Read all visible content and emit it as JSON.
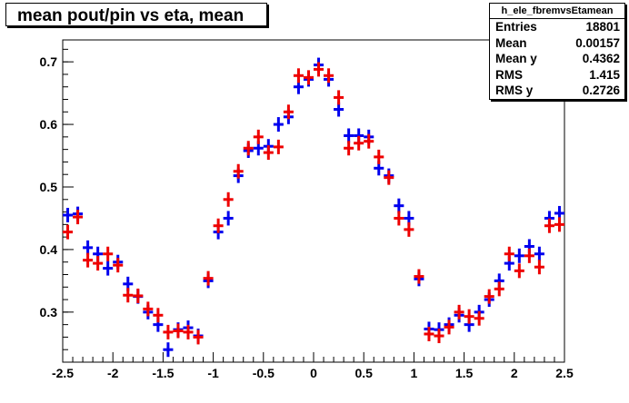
{
  "title": "mean pout/pin vs eta, mean",
  "stats": {
    "name": "h_ele_fbremvsEtamean",
    "rows": [
      {
        "label": "Entries",
        "value": "18801"
      },
      {
        "label": "Mean",
        "value": "0.00157"
      },
      {
        "label": "Mean y",
        "value": "0.4362"
      },
      {
        "label": "RMS",
        "value": "1.415"
      },
      {
        "label": "RMS y",
        "value": "0.2726"
      }
    ]
  },
  "chart_data": {
    "type": "scatter",
    "title": "mean pout/pin vs eta, mean",
    "xlabel": "",
    "ylabel": "",
    "xlim": [
      -2.5,
      2.5
    ],
    "ylim": [
      0.22,
      0.735
    ],
    "xticks": [
      "-2.5",
      "-2",
      "-1.5",
      "-1",
      "-0.5",
      "0",
      "0.5",
      "1",
      "1.5",
      "2",
      "2.5"
    ],
    "yticks": [
      "0.3",
      "0.4",
      "0.5",
      "0.6",
      "0.7"
    ],
    "grid": false,
    "bin_width": 0.1,
    "series": [
      {
        "color": "#0000ee",
        "x": [
          -2.45,
          -2.35,
          -2.25,
          -2.15,
          -2.05,
          -1.95,
          -1.85,
          -1.75,
          -1.65,
          -1.55,
          -1.45,
          -1.35,
          -1.25,
          -1.15,
          -1.05,
          -0.95,
          -0.85,
          -0.75,
          -0.65,
          -0.55,
          -0.45,
          -0.35,
          -0.25,
          -0.15,
          -0.05,
          0.05,
          0.15,
          0.25,
          0.35,
          0.45,
          0.55,
          0.65,
          0.75,
          0.85,
          0.95,
          1.05,
          1.15,
          1.25,
          1.35,
          1.45,
          1.55,
          1.65,
          1.75,
          1.85,
          1.95,
          2.05,
          2.15,
          2.25,
          2.35,
          2.45
        ],
        "y": [
          0.455,
          0.457,
          0.403,
          0.393,
          0.37,
          0.38,
          0.345,
          0.325,
          0.3,
          0.28,
          0.24,
          0.272,
          0.275,
          0.262,
          0.35,
          0.428,
          0.45,
          0.518,
          0.558,
          0.562,
          0.565,
          0.6,
          0.612,
          0.66,
          0.672,
          0.695,
          0.672,
          0.624,
          0.582,
          0.582,
          0.58,
          0.53,
          0.518,
          0.47,
          0.45,
          0.353,
          0.273,
          0.272,
          0.28,
          0.295,
          0.28,
          0.3,
          0.32,
          0.35,
          0.378,
          0.39,
          0.405,
          0.393,
          0.45,
          0.458
        ]
      },
      {
        "color": "#ee0000",
        "x": [
          -2.45,
          -2.35,
          -2.25,
          -2.15,
          -2.05,
          -1.95,
          -1.85,
          -1.75,
          -1.65,
          -1.55,
          -1.45,
          -1.35,
          -1.25,
          -1.15,
          -1.05,
          -0.95,
          -0.85,
          -0.75,
          -0.65,
          -0.55,
          -0.45,
          -0.35,
          -0.25,
          -0.15,
          -0.05,
          0.05,
          0.15,
          0.25,
          0.35,
          0.45,
          0.55,
          0.65,
          0.75,
          0.85,
          0.95,
          1.05,
          1.15,
          1.25,
          1.35,
          1.45,
          1.55,
          1.65,
          1.75,
          1.85,
          1.95,
          2.05,
          2.15,
          2.25,
          2.35,
          2.45
        ],
        "y": [
          0.428,
          0.452,
          0.383,
          0.378,
          0.393,
          0.375,
          0.327,
          0.326,
          0.305,
          0.295,
          0.268,
          0.27,
          0.268,
          0.26,
          0.354,
          0.438,
          0.48,
          0.525,
          0.562,
          0.58,
          0.555,
          0.564,
          0.62,
          0.678,
          0.675,
          0.688,
          0.678,
          0.643,
          0.562,
          0.57,
          0.573,
          0.548,
          0.515,
          0.45,
          0.432,
          0.357,
          0.265,
          0.262,
          0.276,
          0.3,
          0.293,
          0.29,
          0.325,
          0.337,
          0.393,
          0.366,
          0.39,
          0.372,
          0.438,
          0.44
        ]
      }
    ]
  }
}
